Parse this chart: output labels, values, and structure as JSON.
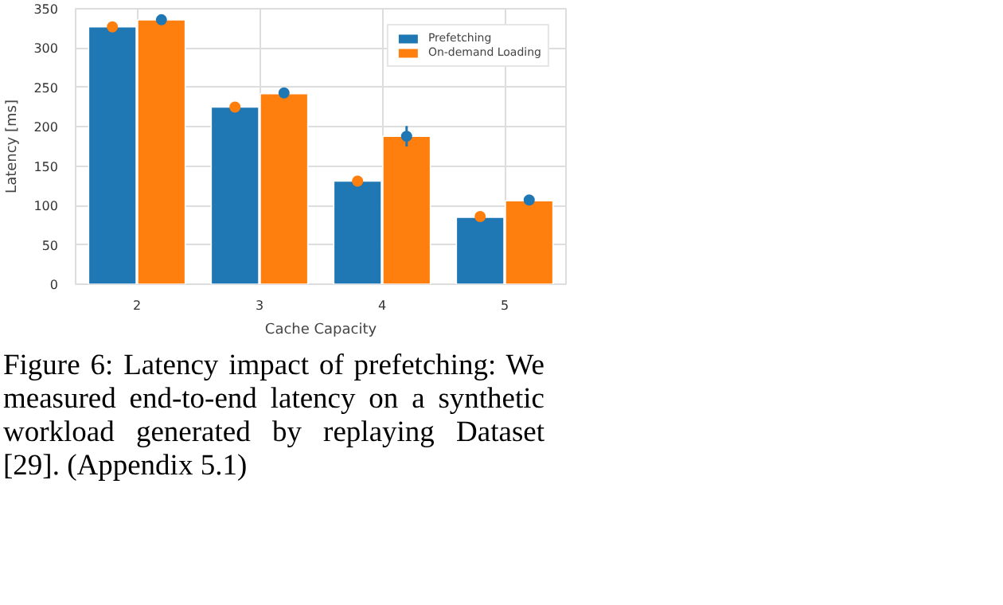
{
  "chart_data": {
    "type": "bar",
    "xlabel": "Cache Capacity",
    "ylabel": "Latency [ms]",
    "categories": [
      "2",
      "3",
      "4",
      "5"
    ],
    "series": [
      {
        "name": "Prefetching",
        "color": "#1f77b4",
        "values": [
          327,
          225,
          131,
          85
        ]
      },
      {
        "name": "On-demand Loading",
        "color": "#ff7f0e",
        "values": [
          336,
          242,
          188,
          106
        ]
      },
      {
        "type": "scatter",
        "color": "#ff7f0e",
        "x": [
          "2",
          "3",
          "4",
          "5"
        ],
        "values": [
          327,
          225,
          131,
          86
        ]
      },
      {
        "type": "scatter",
        "color": "#1f77b4",
        "x": [
          "2",
          "3",
          "4",
          "5"
        ],
        "values": [
          336,
          243,
          188,
          107
        ],
        "errors": [
          null,
          null,
          13,
          null
        ]
      }
    ],
    "ylim": [
      0,
      350
    ],
    "yticks": [
      0,
      50,
      100,
      150,
      200,
      250,
      300,
      350
    ],
    "grid": true,
    "legend": "top right",
    "marker": "circle",
    "annotations": [
      "Figure 6: Latency impact of prefetching: We measured end-to-end latency on a synthetic workload generated by replaying Dataset [29]. (Appendix 5.1)"
    ]
  }
}
